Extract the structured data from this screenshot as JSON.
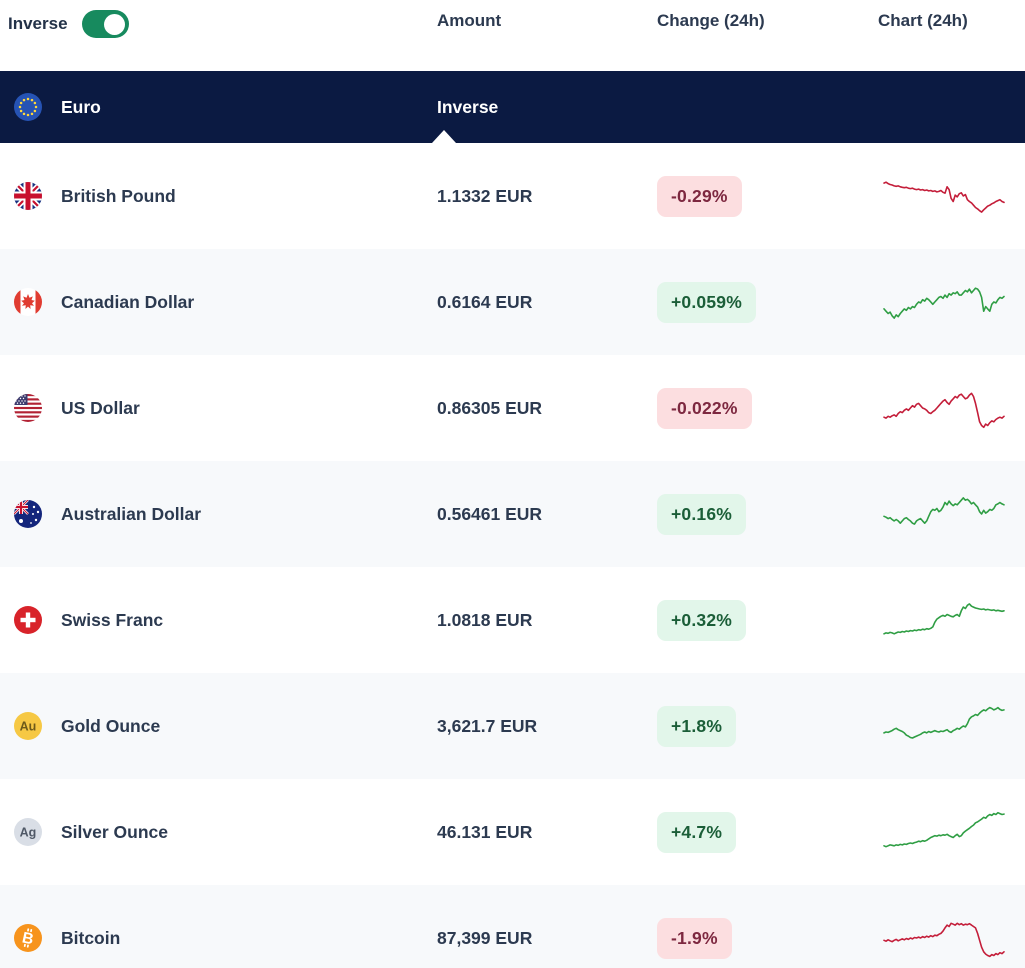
{
  "header": {
    "inverse_toggle_label": "Inverse",
    "toggle_state": "on",
    "col_amount": "Amount",
    "col_change": "Change (24h)",
    "col_chart": "Chart (24h)"
  },
  "base_row": {
    "currency": "Euro",
    "icon": "eu-flag-icon",
    "amount_label": "Inverse"
  },
  "colors": {
    "toggle_green": "#178a5e",
    "header_navy": "#0b1a42",
    "positive_text": "#1b5e38",
    "positive_bg": "#e2f6ea",
    "negative_text": "#7d2840",
    "negative_bg": "#fcdee0",
    "spark_up": "#2f9e44",
    "spark_down": "#c41e3a",
    "row_alt_bg": "#f7f9fb"
  },
  "rows": [
    {
      "name": "British Pound",
      "icon": "uk-flag-icon",
      "amount": "1.1332 EUR",
      "change": "-0.29%",
      "direction": "down"
    },
    {
      "name": "Canadian Dollar",
      "icon": "canada-flag-icon",
      "amount": "0.6164 EUR",
      "change": "+0.059%",
      "direction": "up"
    },
    {
      "name": "US Dollar",
      "icon": "us-flag-icon",
      "amount": "0.86305 EUR",
      "change": "-0.022%",
      "direction": "down"
    },
    {
      "name": "Australian Dollar",
      "icon": "australia-flag-icon",
      "amount": "0.56461 EUR",
      "change": "+0.16%",
      "direction": "up"
    },
    {
      "name": "Swiss Franc",
      "icon": "switzerland-flag-icon",
      "amount": "1.0818 EUR",
      "change": "+0.32%",
      "direction": "up"
    },
    {
      "name": "Gold Ounce",
      "icon": "gold-au-icon",
      "amount": "3,621.7 EUR",
      "change": "+1.8%",
      "direction": "up"
    },
    {
      "name": "Silver Ounce",
      "icon": "silver-ag-icon",
      "amount": "46.131 EUR",
      "change": "+4.7%",
      "direction": "up"
    },
    {
      "name": "Bitcoin",
      "icon": "bitcoin-icon",
      "amount": "87,399 EUR",
      "change": "-1.9%",
      "direction": "down"
    }
  ],
  "chart_data": [
    {
      "name": "British Pound 24h",
      "type": "line",
      "direction": "down",
      "values": [
        78,
        80,
        77,
        75,
        74,
        72,
        71,
        72,
        70,
        69,
        68,
        69,
        67,
        66,
        67,
        65,
        64,
        65,
        63,
        64,
        62,
        63,
        61,
        62,
        60,
        61,
        59,
        60,
        62,
        58,
        56,
        70,
        64,
        45,
        38,
        52,
        48,
        55,
        57,
        50,
        53,
        42,
        38,
        35,
        30,
        25,
        22,
        18,
        15,
        20,
        24,
        28,
        30,
        33,
        35,
        38,
        40,
        42,
        38,
        36
      ]
    },
    {
      "name": "Canadian Dollar 24h",
      "type": "line",
      "direction": "up",
      "values": [
        35,
        30,
        25,
        28,
        20,
        15,
        22,
        18,
        25,
        30,
        35,
        32,
        38,
        35,
        40,
        38,
        45,
        50,
        48,
        55,
        52,
        58,
        55,
        50,
        45,
        50,
        55,
        60,
        62,
        58,
        65,
        60,
        68,
        65,
        70,
        68,
        72,
        65,
        65,
        70,
        75,
        72,
        78,
        70,
        75,
        80,
        78,
        72,
        60,
        30,
        40,
        35,
        30,
        45,
        50,
        48,
        55,
        60,
        58,
        62
      ]
    },
    {
      "name": "US Dollar 24h",
      "type": "line",
      "direction": "down",
      "values": [
        30,
        28,
        32,
        30,
        33,
        35,
        32,
        38,
        42,
        40,
        45,
        48,
        45,
        50,
        55,
        52,
        58,
        60,
        55,
        50,
        48,
        45,
        40,
        38,
        42,
        45,
        50,
        55,
        60,
        65,
        68,
        62,
        58,
        65,
        70,
        75,
        72,
        78,
        80,
        75,
        70,
        72,
        78,
        82,
        75,
        60,
        40,
        20,
        12,
        8,
        15,
        12,
        18,
        22,
        20,
        25,
        28,
        30,
        28,
        32
      ]
    },
    {
      "name": "Australian Dollar 24h",
      "type": "line",
      "direction": "up",
      "values": [
        45,
        43,
        40,
        42,
        38,
        35,
        38,
        35,
        30,
        35,
        40,
        42,
        38,
        35,
        30,
        28,
        35,
        38,
        40,
        35,
        30,
        35,
        45,
        55,
        60,
        58,
        62,
        55,
        58,
        65,
        75,
        70,
        78,
        72,
        68,
        72,
        70,
        75,
        80,
        85,
        80,
        82,
        78,
        72,
        75,
        70,
        65,
        55,
        50,
        58,
        52,
        55,
        60,
        58,
        62,
        70,
        72,
        75,
        72,
        70
      ]
    },
    {
      "name": "Swiss Franc 24h",
      "type": "line",
      "direction": "up",
      "values": [
        20,
        22,
        21,
        23,
        22,
        20,
        22,
        24,
        23,
        25,
        24,
        26,
        25,
        27,
        26,
        28,
        27,
        29,
        28,
        30,
        29,
        31,
        30,
        32,
        35,
        45,
        52,
        55,
        58,
        60,
        58,
        62,
        60,
        58,
        57,
        60,
        62,
        58,
        70,
        78,
        75,
        82,
        85,
        80,
        78,
        76,
        75,
        74,
        73,
        74,
        72,
        73,
        72,
        71,
        72,
        70,
        71,
        70,
        69,
        70
      ]
    },
    {
      "name": "Gold Ounce 24h",
      "type": "line",
      "direction": "up",
      "values": [
        35,
        37,
        36,
        38,
        40,
        43,
        45,
        42,
        40,
        38,
        35,
        30,
        28,
        25,
        24,
        26,
        28,
        30,
        32,
        35,
        37,
        35,
        38,
        36,
        38,
        40,
        38,
        37,
        39,
        38,
        40,
        42,
        38,
        36,
        40,
        42,
        45,
        43,
        47,
        50,
        48,
        55,
        65,
        70,
        72,
        75,
        73,
        78,
        82,
        85,
        83,
        87,
        90,
        88,
        85,
        87,
        90,
        86,
        84,
        85
      ]
    },
    {
      "name": "Silver Ounce 24h",
      "type": "line",
      "direction": "up",
      "values": [
        20,
        18,
        20,
        22,
        21,
        20,
        22,
        21,
        23,
        22,
        24,
        23,
        25,
        26,
        25,
        27,
        28,
        30,
        29,
        31,
        30,
        32,
        35,
        38,
        40,
        42,
        41,
        43,
        42,
        44,
        43,
        45,
        42,
        40,
        38,
        42,
        45,
        40,
        42,
        48,
        52,
        55,
        58,
        62,
        65,
        70,
        72,
        75,
        78,
        82,
        80,
        85,
        88,
        86,
        90,
        88,
        92,
        90,
        88,
        89
      ]
    },
    {
      "name": "Bitcoin 24h",
      "type": "line",
      "direction": "down",
      "values": [
        45,
        43,
        46,
        44,
        42,
        45,
        47,
        44,
        46,
        48,
        46,
        49,
        47,
        50,
        48,
        51,
        50,
        52,
        50,
        53,
        51,
        54,
        52,
        55,
        53,
        56,
        55,
        58,
        60,
        65,
        72,
        78,
        75,
        82,
        80,
        78,
        82,
        79,
        81,
        78,
        80,
        79,
        81,
        78,
        75,
        72,
        60,
        45,
        30,
        20,
        15,
        12,
        10,
        14,
        12,
        16,
        14,
        18,
        16,
        20
      ]
    }
  ]
}
